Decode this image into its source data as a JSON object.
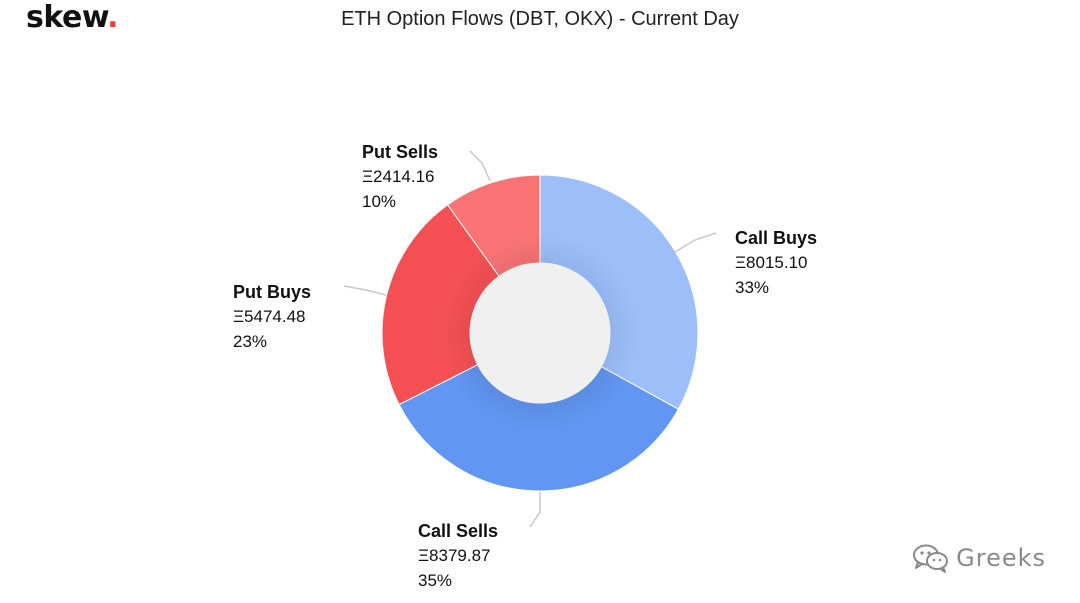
{
  "brand": {
    "name": "skew",
    "dot": "."
  },
  "watermark": {
    "text": "Greeks",
    "icon": "wechat-icon"
  },
  "chart_data": {
    "type": "pie",
    "variant": "donut",
    "title": "ETH Option Flows (DBT, OKX) - Current Day",
    "categories": [
      "Call Buys",
      "Call Sells",
      "Put Buys",
      "Put Sells"
    ],
    "values": [
      8015.1,
      8379.87,
      5474.48,
      2414.16
    ],
    "value_labels": [
      "Ξ8015.10",
      "Ξ8379.87",
      "Ξ5474.48",
      "Ξ2414.16"
    ],
    "percent_labels": [
      "33%",
      "35%",
      "23%",
      "10%"
    ],
    "colors": [
      "#9cbffa",
      "#6196f2",
      "#f55154",
      "#fa7476"
    ],
    "start_angle_deg": 0,
    "direction": "clockwise",
    "legend": "none"
  }
}
